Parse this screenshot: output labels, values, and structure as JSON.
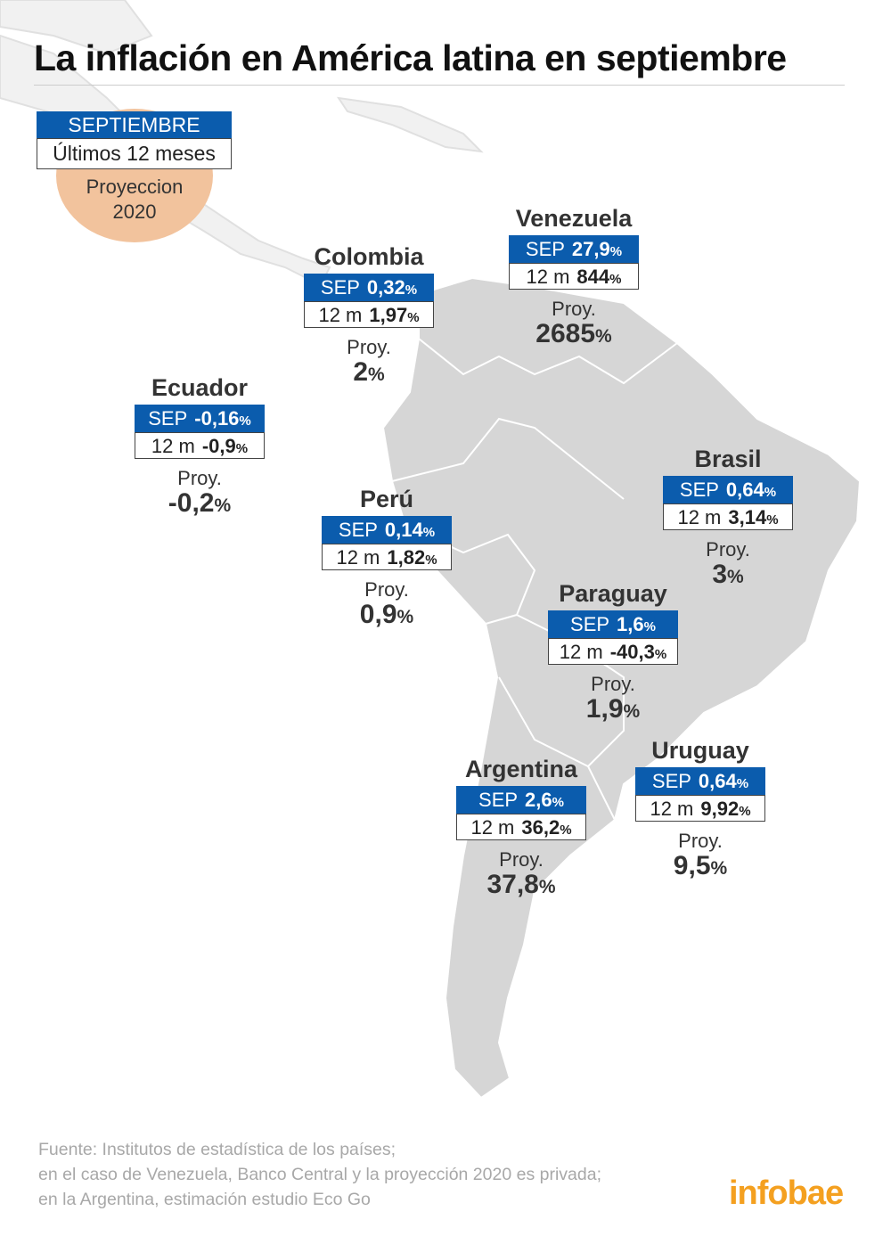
{
  "title": "La inflación en América latina en septiembre",
  "legend": {
    "sep": "SEPTIEMBRE",
    "twelve": "Últimos 12 meses",
    "proy_line1": "Proyeccion",
    "proy_line2": "2020"
  },
  "labels": {
    "sep": "SEP",
    "m12": "12 m",
    "proy": "Proy.",
    "pct": "%"
  },
  "countries": [
    {
      "name": "Venezuela",
      "sep": "27,9",
      "m12": "844",
      "proy": "2685"
    },
    {
      "name": "Colombia",
      "sep": "0,32",
      "m12": "1,97",
      "proy": "2"
    },
    {
      "name": "Ecuador",
      "sep": "-0,16",
      "m12": "-0,9",
      "proy": "-0,2"
    },
    {
      "name": "Perú",
      "sep": "0,14",
      "m12": "1,82",
      "proy": "0,9"
    },
    {
      "name": "Brasil",
      "sep": "0,64",
      "m12": "3,14",
      "proy": "3"
    },
    {
      "name": "Paraguay",
      "sep": "1,6",
      "m12": "-40,3",
      "proy": "1,9"
    },
    {
      "name": "Argentina",
      "sep": "2,6",
      "m12": "36,2",
      "proy": "37,8"
    },
    {
      "name": "Uruguay",
      "sep": "0,64",
      "m12": "9,92",
      "proy": "9,5"
    }
  ],
  "footer": [
    "Fuente: Institutos de estadística de los países;",
    "en el caso de Venezuela, Banco Central y la proyección 2020 es privada;",
    "en la Argentina, estimación estudio Eco Go"
  ],
  "brand": "infobae",
  "colors": {
    "blue": "#0b5cad",
    "peach": "#f2c39d",
    "land": "#d6d6d6",
    "brand": "#f4a020"
  }
}
